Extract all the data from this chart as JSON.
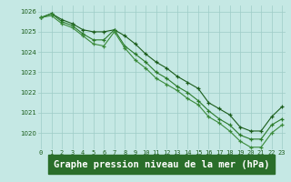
{
  "title": "Graphe pression niveau de la mer (hPa)",
  "x_hours": [
    0,
    1,
    2,
    3,
    4,
    5,
    6,
    7,
    8,
    9,
    10,
    11,
    12,
    13,
    14,
    15,
    16,
    17,
    18,
    19,
    20,
    21,
    22,
    23
  ],
  "line1": [
    1025.7,
    1025.9,
    1025.6,
    1025.4,
    1025.1,
    1025.0,
    1025.0,
    1025.1,
    1024.8,
    1024.4,
    1023.9,
    1023.5,
    1023.2,
    1022.8,
    1022.5,
    1022.2,
    1021.5,
    1021.2,
    1020.9,
    1020.3,
    1020.1,
    1020.1,
    1020.8,
    1021.3
  ],
  "line2": [
    1025.7,
    1025.9,
    1025.5,
    1025.3,
    1024.9,
    1024.6,
    1024.6,
    1025.1,
    1024.3,
    1023.9,
    1023.5,
    1023.0,
    1022.7,
    1022.3,
    1022.0,
    1021.6,
    1021.1,
    1020.7,
    1020.4,
    1019.9,
    1019.7,
    1019.7,
    1020.4,
    1020.7
  ],
  "line3": [
    1025.7,
    1025.8,
    1025.4,
    1025.2,
    1024.8,
    1024.4,
    1024.3,
    1025.0,
    1024.2,
    1023.6,
    1023.2,
    1022.7,
    1022.4,
    1022.1,
    1021.7,
    1021.4,
    1020.8,
    1020.5,
    1020.1,
    1019.6,
    1019.3,
    1019.3,
    1020.0,
    1020.4
  ],
  "line_color1": "#1a5c1a",
  "line_color2": "#2a7a2a",
  "line_color3": "#3a8a3a",
  "bg_color": "#c5e8e4",
  "grid_color": "#9eccc7",
  "text_color": "#1a5c1a",
  "label_bg": "#2a6e2a",
  "ylim": [
    1019.2,
    1026.3
  ],
  "yticks": [
    1020,
    1021,
    1022,
    1023,
    1024,
    1025,
    1026
  ],
  "title_fontsize": 7.5,
  "tick_fontsize": 5.0
}
